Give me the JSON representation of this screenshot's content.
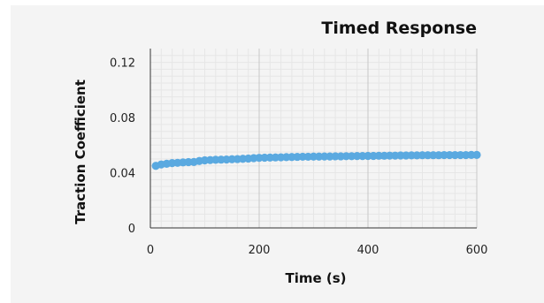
{
  "chart_data": {
    "type": "scatter",
    "title": "Timed Response",
    "xlabel": "Time (s)",
    "ylabel": "Traction Coefficient",
    "xlim": [
      0,
      600
    ],
    "ylim": [
      0,
      0.13
    ],
    "x_ticks": [
      0,
      200,
      400,
      600
    ],
    "x_tick_labels": [
      "0",
      "200",
      "400",
      "600"
    ],
    "y_ticks": [
      0,
      0.04,
      0.08,
      0.12
    ],
    "y_tick_labels": [
      "0",
      "0.04",
      "0.08",
      "0.12"
    ],
    "grid": true,
    "legend": "none",
    "series": [
      {
        "color": "#5aa9e0",
        "x": [
          10,
          20,
          30,
          40,
          50,
          60,
          70,
          80,
          90,
          100,
          110,
          120,
          130,
          140,
          150,
          160,
          170,
          180,
          190,
          200,
          210,
          220,
          230,
          240,
          250,
          260,
          270,
          280,
          290,
          300,
          310,
          320,
          330,
          340,
          350,
          360,
          370,
          380,
          390,
          400,
          410,
          420,
          430,
          440,
          450,
          460,
          470,
          480,
          490,
          500,
          510,
          520,
          530,
          540,
          550,
          560,
          570,
          580,
          590,
          600
        ],
        "y": [
          0.045,
          0.046,
          0.0465,
          0.047,
          0.0472,
          0.0475,
          0.0477,
          0.0478,
          0.0485,
          0.049,
          0.0492,
          0.0494,
          0.0495,
          0.0496,
          0.0498,
          0.0499,
          0.0501,
          0.0503,
          0.0506,
          0.0508,
          0.0509,
          0.051,
          0.0511,
          0.0512,
          0.0513,
          0.0514,
          0.0515,
          0.0516,
          0.0516,
          0.0517,
          0.0517,
          0.0518,
          0.0518,
          0.0519,
          0.0519,
          0.052,
          0.052,
          0.0521,
          0.0521,
          0.0522,
          0.0522,
          0.0523,
          0.0523,
          0.0524,
          0.0524,
          0.0525,
          0.0525,
          0.0526,
          0.0526,
          0.0527,
          0.0527,
          0.0527,
          0.0527,
          0.0528,
          0.0528,
          0.0528,
          0.0528,
          0.0528,
          0.0529,
          0.0529
        ]
      }
    ]
  }
}
